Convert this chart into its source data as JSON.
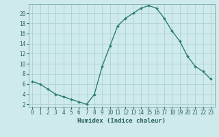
{
  "x": [
    0,
    1,
    2,
    3,
    4,
    5,
    6,
    7,
    8,
    9,
    10,
    11,
    12,
    13,
    14,
    15,
    16,
    17,
    18,
    19,
    20,
    21,
    22,
    23
  ],
  "y": [
    6.5,
    6.0,
    5.0,
    4.0,
    3.5,
    3.0,
    2.5,
    2.0,
    4.0,
    9.5,
    13.5,
    17.5,
    19.0,
    20.0,
    21.0,
    21.5,
    21.0,
    19.0,
    16.5,
    14.5,
    11.5,
    9.5,
    8.5,
    7.0
  ],
  "line_color": "#2d7d6e",
  "marker": "D",
  "marker_size": 1.8,
  "bg_color": "#ceeaea",
  "grid_color": "#b0d0d0",
  "xlabel": "Humidex (Indice chaleur)",
  "xlim": [
    -0.5,
    23.5
  ],
  "ylim": [
    1.5,
    21.8
  ],
  "yticks": [
    2,
    4,
    6,
    8,
    10,
    12,
    14,
    16,
    18,
    20
  ],
  "xticks": [
    0,
    1,
    2,
    3,
    4,
    5,
    6,
    7,
    8,
    9,
    10,
    11,
    12,
    13,
    14,
    15,
    16,
    17,
    18,
    19,
    20,
    21,
    22,
    23
  ],
  "tick_color": "#2d6060",
  "label_fontsize": 6.5,
  "tick_fontsize": 5.5,
  "spine_color": "#7aabab",
  "linewidth": 1.0
}
